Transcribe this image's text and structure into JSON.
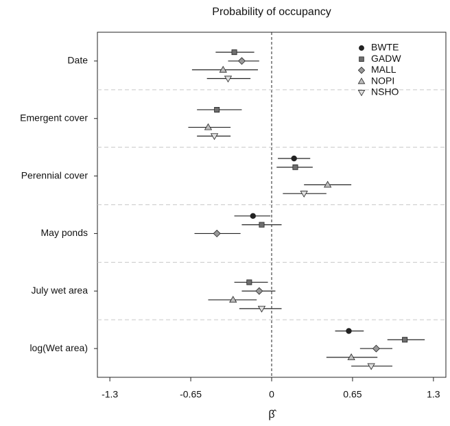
{
  "chart_data": {
    "type": "dot-errorbar",
    "title": "Probability of occupancy",
    "x_label": "β̂",
    "categories": [
      "Date",
      "Emergent cover",
      "Perennial cover",
      "May ponds",
      "July wet area",
      "log(Wet area)"
    ],
    "xlim": [
      -1.4,
      1.4
    ],
    "xticks": [
      -1.3,
      -0.65,
      0,
      0.65,
      1.3
    ],
    "reference_line": 0,
    "legend": "top-right",
    "series": [
      {
        "name": "BWTE",
        "color": "#222222",
        "marker": "circle",
        "values": [
          null,
          null,
          0.18,
          -0.15,
          null,
          0.62
        ],
        "lower": [
          null,
          null,
          0.05,
          -0.3,
          null,
          0.51
        ],
        "upper": [
          null,
          null,
          0.31,
          -0.01,
          null,
          0.74
        ]
      },
      {
        "name": "GADW",
        "color": "#6e6e6e",
        "marker": "square",
        "values": [
          -0.3,
          -0.44,
          0.19,
          -0.08,
          -0.18,
          1.07
        ],
        "lower": [
          -0.45,
          -0.6,
          0.04,
          -0.24,
          -0.3,
          0.93
        ],
        "upper": [
          -0.14,
          -0.24,
          0.33,
          0.08,
          -0.03,
          1.23
        ]
      },
      {
        "name": "MALL",
        "color": "#999999",
        "marker": "diamond",
        "values": [
          -0.24,
          null,
          null,
          -0.44,
          -0.1,
          0.84
        ],
        "lower": [
          -0.35,
          null,
          null,
          -0.62,
          -0.24,
          0.71
        ],
        "upper": [
          -0.1,
          null,
          null,
          -0.25,
          0.03,
          0.97
        ]
      },
      {
        "name": "NOPI",
        "color": "#bdbdbd",
        "marker": "triangle-up",
        "values": [
          -0.39,
          -0.51,
          0.45,
          null,
          -0.31,
          0.64
        ],
        "lower": [
          -0.64,
          -0.67,
          0.26,
          null,
          -0.51,
          0.44
        ],
        "upper": [
          -0.11,
          -0.33,
          0.64,
          null,
          -0.12,
          0.85
        ]
      },
      {
        "name": "NSHO",
        "color": "#dedede",
        "marker": "triangle-down",
        "values": [
          -0.35,
          -0.46,
          0.26,
          null,
          -0.08,
          0.8
        ],
        "lower": [
          -0.52,
          -0.6,
          0.09,
          null,
          -0.26,
          0.64
        ],
        "upper": [
          -0.17,
          -0.33,
          0.44,
          null,
          0.08,
          0.97
        ]
      }
    ]
  }
}
